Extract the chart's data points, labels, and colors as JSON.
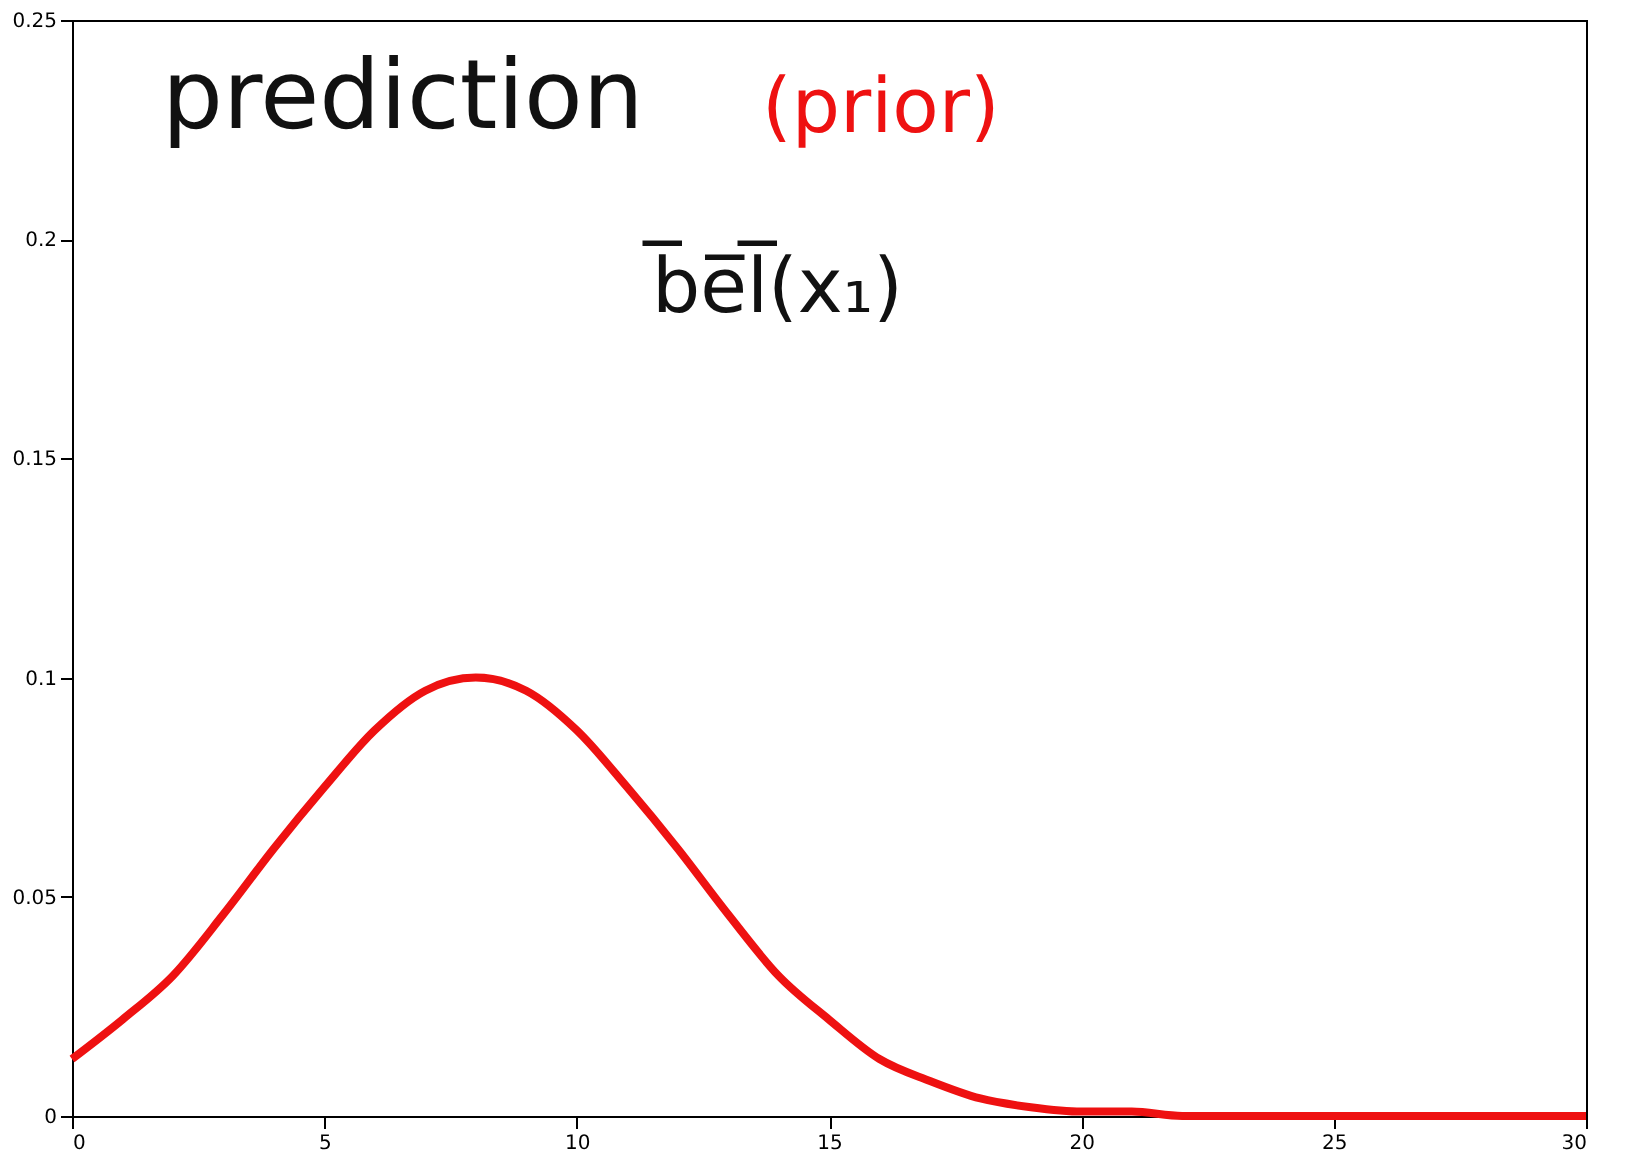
{
  "chart_data": {
    "type": "line",
    "x": [
      0,
      1,
      2,
      3,
      4,
      5,
      6,
      7,
      8,
      9,
      10,
      11,
      12,
      13,
      14,
      15,
      16,
      17,
      18,
      19,
      20,
      21,
      22,
      23,
      24,
      25,
      26,
      27,
      28,
      29,
      30
    ],
    "series": [
      {
        "color": "#ee1111",
        "values": [
          0.013,
          0.022,
          0.032,
          0.046,
          0.061,
          0.075,
          0.088,
          0.097,
          0.1,
          0.097,
          0.088,
          0.075,
          0.061,
          0.046,
          0.032,
          0.022,
          0.013,
          0.008,
          0.004,
          0.002,
          0.001,
          0.001,
          0.0,
          0.0,
          0.0,
          0.0,
          0.0,
          0.0,
          0.0,
          0.0,
          0.0
        ]
      }
    ],
    "xlim": [
      0,
      30
    ],
    "xticks": [
      0,
      5,
      10,
      15,
      20,
      25,
      30
    ],
    "ylim": [
      0,
      0.25
    ],
    "yticks": [
      0,
      0.05,
      0.1,
      0.15,
      0.2,
      0.25
    ],
    "grid": false,
    "legend": false,
    "marker": "none",
    "line_style": "solid",
    "annotations": [
      "prediction",
      "(prior)",
      "b̅e̅l̅(x₁)"
    ]
  }
}
